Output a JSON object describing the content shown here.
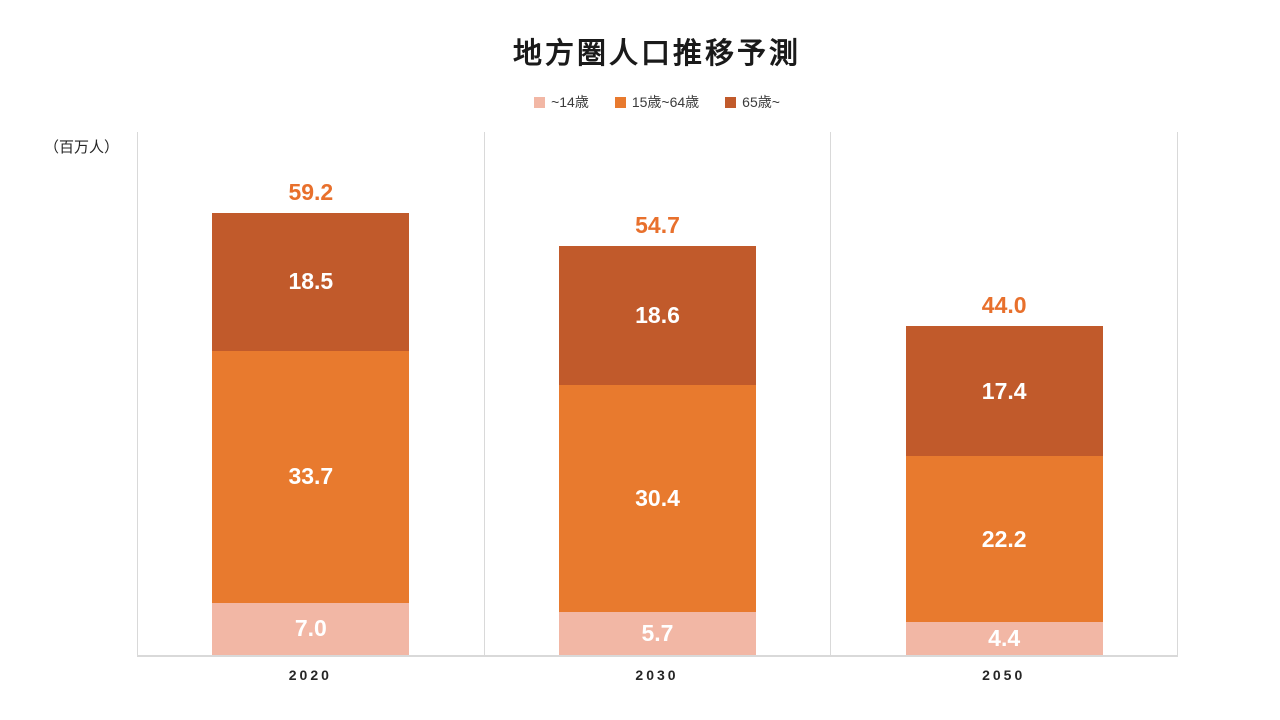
{
  "title": "地方圏人口推移予測",
  "unit_label": "（百万人）",
  "legend": [
    {
      "label": "~14歳",
      "color": "#F2B7A5"
    },
    {
      "label": "15歳~64歳",
      "color": "#E87A2E"
    },
    {
      "label": "65歳~",
      "color": "#C15A2B"
    }
  ],
  "colors": {
    "total_label": "#E8702C",
    "segment_label": "#FFFFFF",
    "gridline": "#D9D9D9",
    "title_text": "#1A1A1A",
    "axis_text": "#262626"
  },
  "chart_data": {
    "type": "bar",
    "stacked": true,
    "title": "地方圏人口推移予測",
    "ylabel": "百万人",
    "categories": [
      "2020",
      "2030",
      "2050"
    ],
    "series": [
      {
        "name": "~14歳",
        "color": "#F2B7A5",
        "values": [
          7.0,
          5.7,
          4.4
        ]
      },
      {
        "name": "15歳~64歳",
        "color": "#E87A2E",
        "values": [
          33.7,
          30.4,
          22.2
        ]
      },
      {
        "name": "65歳~",
        "color": "#C15A2B",
        "values": [
          18.5,
          18.6,
          17.4
        ]
      }
    ],
    "totals": [
      59.2,
      54.7,
      44.0
    ],
    "ylim": [
      0,
      70
    ],
    "grid": "vertical category separators",
    "legend_position": "top-center"
  }
}
